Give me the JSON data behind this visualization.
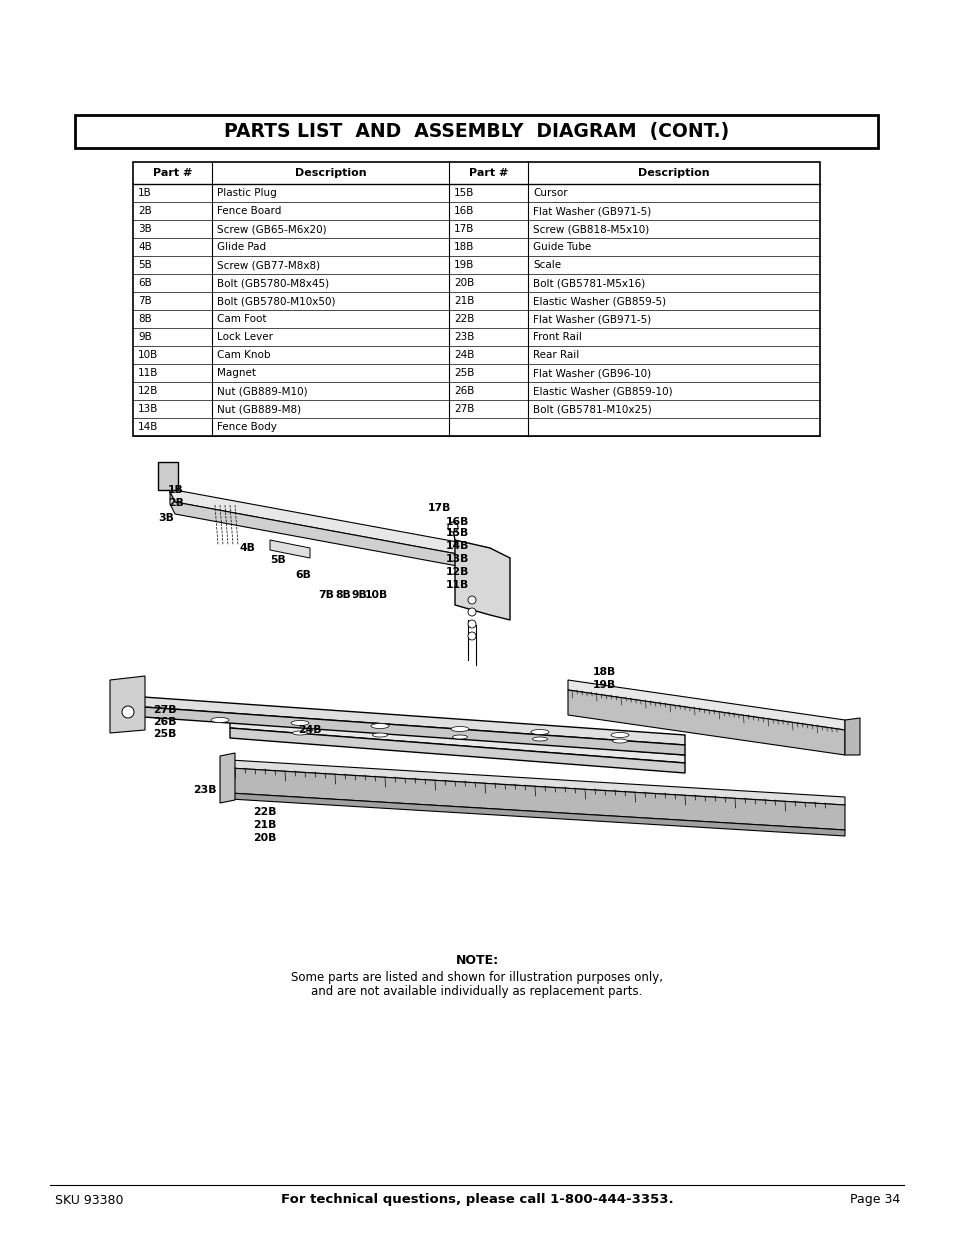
{
  "title": "PARTS LIST  AND  ASSEMBLY  DIAGRAM  (CONT.)",
  "table_headers": [
    "Part #",
    "Description",
    "Part #",
    "Description"
  ],
  "table_rows": [
    [
      "1B",
      "Plastic Plug",
      "15B",
      "Cursor"
    ],
    [
      "2B",
      "Fence Board",
      "16B",
      "Flat Washer (GB971-5)"
    ],
    [
      "3B",
      "Screw (GB65-M6x20)",
      "17B",
      "Screw (GB818-M5x10)"
    ],
    [
      "4B",
      "Glide Pad",
      "18B",
      "Guide Tube"
    ],
    [
      "5B",
      "Screw (GB77-M8x8)",
      "19B",
      "Scale"
    ],
    [
      "6B",
      "Bolt (GB5780-M8x45)",
      "20B",
      "Bolt (GB5781-M5x16)"
    ],
    [
      "7B",
      "Bolt (GB5780-M10x50)",
      "21B",
      "Elastic Washer (GB859-5)"
    ],
    [
      "8B",
      "Cam Foot",
      "22B",
      "Flat Washer (GB971-5)"
    ],
    [
      "9B",
      "Lock Lever",
      "23B",
      "Front Rail"
    ],
    [
      "10B",
      "Cam Knob",
      "24B",
      "Rear Rail"
    ],
    [
      "11B",
      "Magnet",
      "25B",
      "Flat Washer (GB96-10)"
    ],
    [
      "12B",
      "Nut (GB889-M10)",
      "26B",
      "Elastic Washer (GB859-10)"
    ],
    [
      "13B",
      "Nut (GB889-M8)",
      "27B",
      "Bolt (GB5781-M10x25)"
    ],
    [
      "14B",
      "Fence Body",
      "",
      ""
    ]
  ],
  "note_bold": "NOTE:",
  "note_line1": "Some parts are listed and shown for illustration purposes only,",
  "note_line2": "and are not available individually as replacement parts.",
  "footer_left": "SKU 93380",
  "footer_center": "For technical questions, please call 1-800-444-3353.",
  "footer_right": "Page 34",
  "bg_color": "#ffffff",
  "text_color": "#000000"
}
